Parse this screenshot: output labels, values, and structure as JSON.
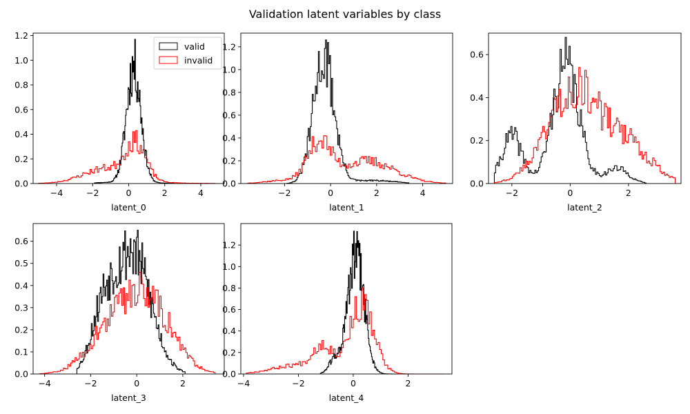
{
  "figure": {
    "title": "Validation latent variables by class"
  },
  "chart_data": [
    {
      "type": "histogram",
      "xlabel": "latent_0",
      "xlim": [
        -5.3,
        5.3
      ],
      "ylim": [
        0,
        1.22
      ],
      "xticks": [
        -4,
        -2,
        0,
        2,
        4
      ],
      "yticks": [
        0.0,
        0.2,
        0.4,
        0.6,
        0.8,
        1.0,
        1.2
      ],
      "legend": {
        "location": "upper right",
        "entries": [
          "valid",
          "invalid"
        ]
      },
      "series": [
        {
          "name": "valid",
          "color": "#000000",
          "dist": {
            "comps": [
              [
                0.28,
                0.4,
                0.45
              ],
              [
                -0.3,
                1.6,
                0.02
              ]
            ],
            "peak": 1.17,
            "support": [
              -1.9,
              2.5
            ],
            "seed": 11
          }
        },
        {
          "name": "invalid",
          "color": "#ff0000",
          "dist": {
            "comps": [
              [
                0.4,
                0.55,
                0.5
              ],
              [
                -1.2,
                1.3,
                0.5
              ],
              [
                0.5,
                2.0,
                0.05
              ]
            ],
            "peak": 0.43,
            "support": [
              -5.0,
              4.8
            ],
            "seed": 23
          }
        }
      ]
    },
    {
      "type": "histogram",
      "xlabel": "latent_1",
      "xlim": [
        -3.9,
        5.3
      ],
      "ylim": [
        0,
        1.32
      ],
      "xticks": [
        -2,
        0,
        2,
        4
      ],
      "yticks": [
        0.0,
        0.2,
        0.4,
        0.6,
        0.8,
        1.0,
        1.2
      ],
      "legend": null,
      "series": [
        {
          "name": "valid",
          "color": "#000000",
          "dist": {
            "comps": [
              [
                -0.3,
                0.45,
                0.95
              ],
              [
                1.8,
                1.0,
                0.05
              ]
            ],
            "peak": 1.26,
            "support": [
              -1.9,
              3.4
            ],
            "seed": 31
          }
        },
        {
          "name": "invalid",
          "color": "#ff0000",
          "dist": {
            "comps": [
              [
                -0.5,
                0.5,
                0.4
              ],
              [
                1.6,
                1.2,
                0.55
              ],
              [
                -2.0,
                0.8,
                0.05
              ]
            ],
            "peak": 0.42,
            "support": [
              -3.6,
              5.0
            ],
            "seed": 37
          }
        }
      ]
    },
    {
      "type": "histogram",
      "xlabel": "latent_2",
      "xlim": [
        -2.8,
        3.8
      ],
      "ylim": [
        0,
        0.7
      ],
      "xticks": [
        -2,
        0,
        2
      ],
      "yticks": [
        0.0,
        0.2,
        0.4,
        0.6
      ],
      "legend": null,
      "series": [
        {
          "name": "valid",
          "color": "#000000",
          "dist": {
            "comps": [
              [
                -0.15,
                0.45,
                0.7
              ],
              [
                -2.0,
                0.35,
                0.22
              ],
              [
                1.6,
                0.4,
                0.08
              ]
            ],
            "peak": 0.68,
            "support": [
              -2.6,
              2.6
            ],
            "seed": 41
          }
        },
        {
          "name": "invalid",
          "color": "#ff0000",
          "dist": {
            "comps": [
              [
                0.1,
                0.9,
                0.75
              ],
              [
                2.0,
                0.8,
                0.25
              ]
            ],
            "peak": 0.54,
            "support": [
              -2.6,
              3.6
            ],
            "seed": 43
          }
        }
      ]
    },
    {
      "type": "histogram",
      "xlabel": "latent_3",
      "xlim": [
        -4.5,
        3.8
      ],
      "ylim": [
        0,
        0.68
      ],
      "xticks": [
        -4,
        -2,
        0,
        2
      ],
      "yticks": [
        0.0,
        0.1,
        0.2,
        0.3,
        0.4,
        0.5,
        0.6
      ],
      "legend": null,
      "series": [
        {
          "name": "valid",
          "color": "#000000",
          "dist": {
            "comps": [
              [
                -0.2,
                0.8,
                0.8
              ],
              [
                -1.5,
                0.5,
                0.2
              ]
            ],
            "peak": 0.65,
            "support": [
              -2.6,
              2.1
            ],
            "seed": 53
          }
        },
        {
          "name": "invalid",
          "color": "#ff0000",
          "dist": {
            "comps": [
              [
                0.3,
                1.1,
                0.8
              ],
              [
                -1.5,
                0.9,
                0.2
              ]
            ],
            "peak": 0.46,
            "support": [
              -4.2,
              3.4
            ],
            "seed": 59
          }
        }
      ]
    },
    {
      "type": "histogram",
      "xlabel": "latent_4",
      "xlim": [
        -4.1,
        3.6
      ],
      "ylim": [
        0,
        1.4
      ],
      "xticks": [
        -4,
        -2,
        0,
        2
      ],
      "yticks": [
        0.0,
        0.2,
        0.4,
        0.6,
        0.8,
        1.0,
        1.2
      ],
      "legend": null,
      "series": [
        {
          "name": "valid",
          "color": "#000000",
          "dist": {
            "comps": [
              [
                0.1,
                0.3,
                0.93
              ],
              [
                -0.7,
                0.2,
                0.07
              ]
            ],
            "peak": 1.33,
            "support": [
              -1.2,
              1.6
            ],
            "seed": 61
          }
        },
        {
          "name": "invalid",
          "color": "#ff0000",
          "dist": {
            "comps": [
              [
                0.3,
                0.45,
                0.65
              ],
              [
                -1.1,
                0.35,
                0.18
              ],
              [
                -2.0,
                0.9,
                0.17
              ]
            ],
            "peak": 0.8,
            "support": [
              -3.9,
              3.3
            ],
            "seed": 67
          }
        }
      ]
    }
  ]
}
